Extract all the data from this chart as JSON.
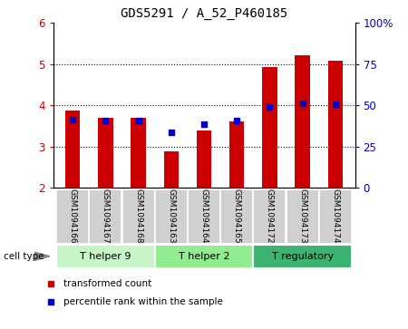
{
  "title": "GDS5291 / A_52_P460185",
  "samples": [
    "GSM1094166",
    "GSM1094167",
    "GSM1094168",
    "GSM1094163",
    "GSM1094164",
    "GSM1094165",
    "GSM1094172",
    "GSM1094173",
    "GSM1094174"
  ],
  "red_values": [
    3.88,
    3.7,
    3.7,
    2.88,
    3.38,
    3.6,
    4.93,
    5.22,
    5.08
  ],
  "blue_values": [
    3.65,
    3.62,
    3.62,
    3.35,
    3.55,
    3.62,
    3.95,
    4.05,
    4.02
  ],
  "ylim_left": [
    2,
    6
  ],
  "ylim_right": [
    0,
    100
  ],
  "yticks_left": [
    2,
    3,
    4,
    5,
    6
  ],
  "yticks_right": [
    0,
    25,
    50,
    75,
    100
  ],
  "yticklabels_right": [
    "0",
    "25",
    "50",
    "75",
    "100%"
  ],
  "cell_type_label": "cell type",
  "legend_red_label": "transformed count",
  "legend_blue_label": "percentile rank within the sample",
  "bar_color_red": "#cc0000",
  "bar_color_blue": "#0000cc",
  "bar_width": 0.45,
  "tick_box_color": "#d0d0d0",
  "left_tick_color": "#cc0000",
  "right_tick_color": "#0000cc",
  "group_colors": [
    "#c8f5c8",
    "#90ee90",
    "#3cb371"
  ],
  "group_labels": [
    "T helper 9",
    "T helper 2",
    "T regulatory"
  ],
  "group_starts": [
    0,
    3,
    6
  ],
  "group_ends": [
    2,
    5,
    8
  ]
}
